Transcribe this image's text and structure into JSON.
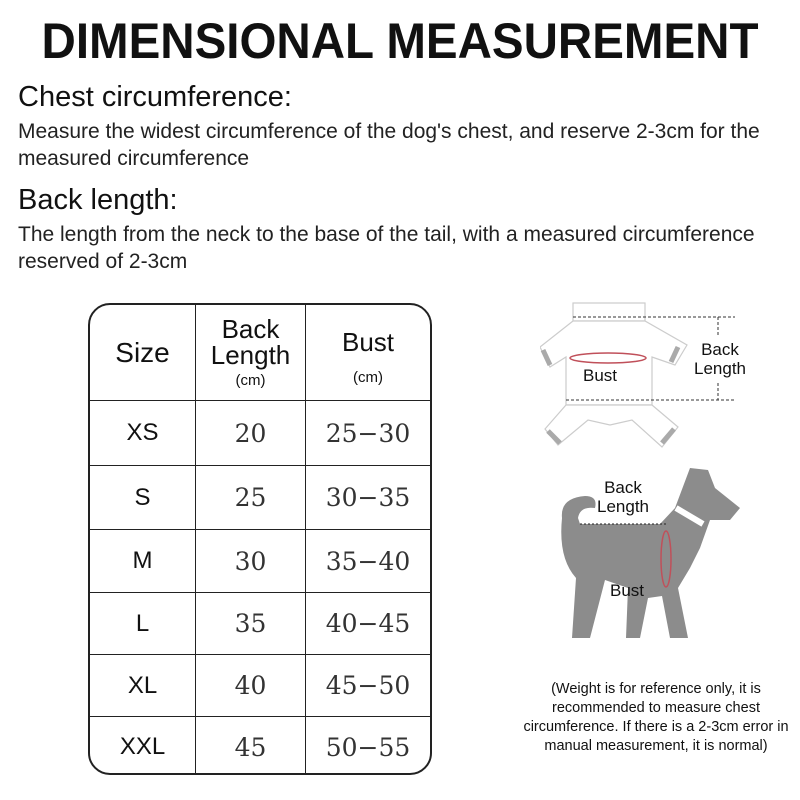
{
  "title": "DIMENSIONAL MEASUREMENT",
  "chest": {
    "heading": "Chest circumference:",
    "text": "Measure the widest circumference of the dog's chest, and reserve 2-3cm for the measured circumference"
  },
  "back": {
    "heading": "Back length:",
    "text": "The length from the neck to the base of the tail, with a measured circumference reserved of 2-3cm"
  },
  "table": {
    "headers": [
      {
        "label": "Size"
      },
      {
        "label1": "Back",
        "label2": "Length",
        "unit": "(cm)"
      },
      {
        "label": "Bust",
        "unit": "(cm)"
      }
    ],
    "rows": [
      [
        "XS",
        "20",
        "25−30"
      ],
      [
        "S",
        "25",
        "30−35"
      ],
      [
        "M",
        "30",
        "35−40"
      ],
      [
        "L",
        "35",
        "40−45"
      ],
      [
        "XL",
        "40",
        "45−50"
      ],
      [
        "XXL",
        "45",
        "50−55"
      ]
    ]
  },
  "diagram": {
    "garment_bust": "Bust",
    "garment_back1": "Back",
    "garment_back2": "Length",
    "dog_back1": "Back",
    "dog_back2": "Length",
    "dog_bust": "Bust"
  },
  "note": "(Weight is for reference only, it is recommended to measure chest circumference. If there is a 2-3cm error in manual measurement, it is normal)",
  "colors": {
    "dog": "#8c8c8c",
    "bust_line": "#c0505a"
  }
}
